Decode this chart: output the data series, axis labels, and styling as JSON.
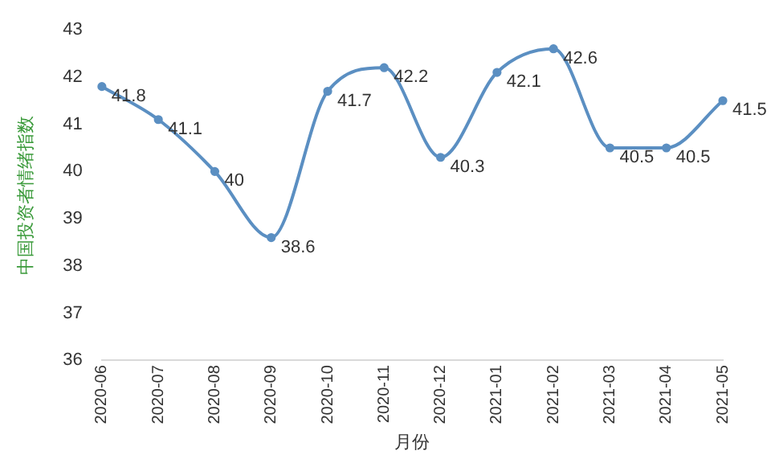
{
  "chart_data": {
    "type": "line",
    "ylabel": "中国投资者情绪指数",
    "xlabel": "月份",
    "categories": [
      "2020-06",
      "2020-07",
      "2020-08",
      "2020-09",
      "2020-10",
      "2020-11",
      "2020-12",
      "2021-01",
      "2021-02",
      "2021-03",
      "2021-04",
      "2021-05"
    ],
    "series": [
      {
        "color": "#5b8fc2",
        "values": [
          41.8,
          41.1,
          40,
          38.6,
          41.7,
          42.2,
          40.3,
          42.1,
          42.6,
          40.5,
          40.5,
          41.5
        ]
      }
    ],
    "ylim": [
      36,
      43
    ],
    "yticks": [
      36,
      37,
      38,
      39,
      40,
      41,
      42,
      43
    ],
    "grid": false,
    "legend": false,
    "marker": "circle",
    "line_style": "solid",
    "data_labels": true
  }
}
